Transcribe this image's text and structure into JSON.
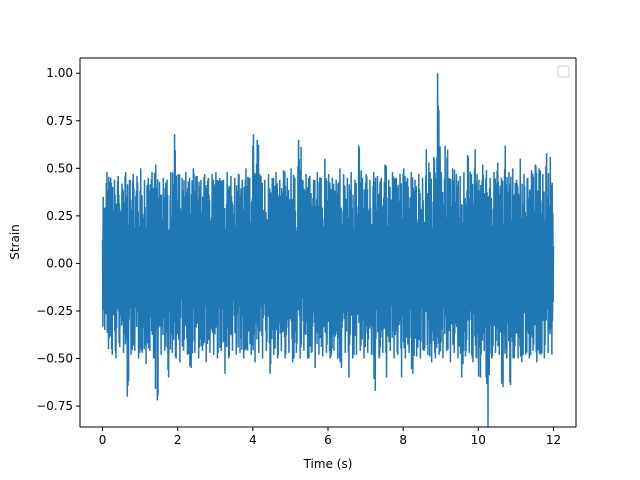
{
  "chart_data": {
    "type": "line",
    "title": "",
    "xlabel": "Time (s)",
    "ylabel": "Strain",
    "xlim": [
      -0.6,
      12.6
    ],
    "ylim": [
      -0.86,
      1.08
    ],
    "xticks": [
      0,
      2,
      4,
      6,
      8,
      10,
      12
    ],
    "xtick_labels": [
      "0",
      "2",
      "4",
      "6",
      "8",
      "10",
      "12"
    ],
    "yticks": [
      -0.75,
      -0.5,
      -0.25,
      0.0,
      0.25,
      0.5,
      0.75,
      1.0
    ],
    "ytick_labels": [
      "−0.75",
      "−0.50",
      "−0.25",
      "0.00",
      "0.25",
      "0.50",
      "0.75",
      "1.00"
    ],
    "grid": false,
    "legend": {
      "placement": "top-right",
      "entries": []
    },
    "series": [
      {
        "color": "#1f77b4",
        "x": [
          0,
          0.1,
          0.2,
          0.3,
          0.4,
          0.5,
          0.6,
          0.7,
          0.8,
          0.9,
          1.0,
          1.1,
          1.2,
          1.3,
          1.4,
          1.5,
          1.6,
          1.7,
          1.8,
          1.9,
          2.0,
          2.1,
          2.2,
          2.3,
          2.4,
          2.5,
          2.6,
          2.7,
          2.8,
          2.9,
          3.0,
          3.1,
          3.2,
          3.3,
          3.4,
          3.5,
          3.6,
          3.7,
          3.8,
          3.9,
          4.0,
          4.1,
          4.2,
          4.3,
          4.4,
          4.5,
          4.6,
          4.7,
          4.8,
          4.9,
          5.0,
          5.1,
          5.2,
          5.3,
          5.4,
          5.5,
          5.6,
          5.7,
          5.8,
          5.9,
          6.0,
          6.1,
          6.2,
          6.3,
          6.4,
          6.5,
          6.6,
          6.7,
          6.8,
          6.9,
          7.0,
          7.1,
          7.2,
          7.3,
          7.4,
          7.5,
          7.6,
          7.7,
          7.8,
          7.9,
          8.0,
          8.1,
          8.2,
          8.3,
          8.4,
          8.5,
          8.6,
          8.7,
          8.8,
          8.9,
          9.0,
          9.1,
          9.2,
          9.3,
          9.4,
          9.5,
          9.6,
          9.7,
          9.8,
          9.9,
          10.0,
          10.1,
          10.2,
          10.3,
          10.4,
          10.5,
          10.6,
          10.7,
          10.8,
          10.9,
          11.0,
          11.1,
          11.2,
          11.3,
          11.4,
          11.5,
          11.6,
          11.7,
          11.8,
          11.9,
          12.0
        ],
        "y_max": [
          0.35,
          0.48,
          0.45,
          0.44,
          0.46,
          0.42,
          0.48,
          0.44,
          0.47,
          0.46,
          0.5,
          0.44,
          0.45,
          0.48,
          0.52,
          0.43,
          0.45,
          0.44,
          0.48,
          0.68,
          0.47,
          0.45,
          0.48,
          0.45,
          0.5,
          0.46,
          0.44,
          0.47,
          0.45,
          0.47,
          0.48,
          0.45,
          0.44,
          0.48,
          0.46,
          0.45,
          0.47,
          0.44,
          0.5,
          0.45,
          0.68,
          0.65,
          0.46,
          0.44,
          0.47,
          0.45,
          0.48,
          0.44,
          0.49,
          0.45,
          0.5,
          0.45,
          0.65,
          0.44,
          0.47,
          0.46,
          0.44,
          0.48,
          0.45,
          0.55,
          0.47,
          0.45,
          0.44,
          0.5,
          0.47,
          0.45,
          0.48,
          0.44,
          0.62,
          0.45,
          0.47,
          0.44,
          0.48,
          0.46,
          0.45,
          0.52,
          0.44,
          0.48,
          0.45,
          0.47,
          0.5,
          0.45,
          0.48,
          0.44,
          0.47,
          0.45,
          0.6,
          0.48,
          0.56,
          1.0,
          0.48,
          0.62,
          0.45,
          0.5,
          0.47,
          0.46,
          0.48,
          0.57,
          0.47,
          0.6,
          0.44,
          0.52,
          0.49,
          0.45,
          0.48,
          0.53,
          0.45,
          0.62,
          0.48,
          0.5,
          0.44,
          0.55,
          0.47,
          0.45,
          0.49,
          0.52,
          0.5,
          0.47,
          0.58,
          0.56,
          0.2
        ],
        "y_min": [
          -0.35,
          -0.45,
          -0.48,
          -0.5,
          -0.44,
          -0.47,
          -0.7,
          -0.48,
          -0.46,
          -0.5,
          -0.47,
          -0.53,
          -0.46,
          -0.5,
          -0.72,
          -0.48,
          -0.46,
          -0.6,
          -0.47,
          -0.5,
          -0.52,
          -0.46,
          -0.48,
          -0.55,
          -0.47,
          -0.5,
          -0.46,
          -0.52,
          -0.47,
          -0.48,
          -0.5,
          -0.46,
          -0.58,
          -0.5,
          -0.46,
          -0.48,
          -0.47,
          -0.5,
          -0.46,
          -0.48,
          -0.52,
          -0.47,
          -0.5,
          -0.46,
          -0.58,
          -0.48,
          -0.5,
          -0.46,
          -0.5,
          -0.47,
          -0.52,
          -0.47,
          -0.5,
          -0.46,
          -0.5,
          -0.47,
          -0.55,
          -0.48,
          -0.49,
          -0.47,
          -0.5,
          -0.46,
          -0.5,
          -0.55,
          -0.47,
          -0.6,
          -0.5,
          -0.48,
          -0.46,
          -0.5,
          -0.47,
          -0.48,
          -0.67,
          -0.5,
          -0.47,
          -0.6,
          -0.46,
          -0.5,
          -0.48,
          -0.6,
          -0.5,
          -0.47,
          -0.58,
          -0.49,
          -0.5,
          -0.46,
          -0.48,
          -0.52,
          -0.5,
          -0.48,
          -0.5,
          -0.46,
          -0.52,
          -0.47,
          -0.5,
          -0.6,
          -0.49,
          -0.47,
          -0.52,
          -0.5,
          -0.6,
          -0.46,
          -0.86,
          -0.5,
          -0.47,
          -0.48,
          -0.65,
          -0.5,
          -0.64,
          -0.5,
          -0.5,
          -0.52,
          -0.48,
          -0.5,
          -0.46,
          -0.52,
          -0.48,
          -0.5,
          -0.47,
          -0.48,
          -0.2
        ]
      }
    ]
  }
}
